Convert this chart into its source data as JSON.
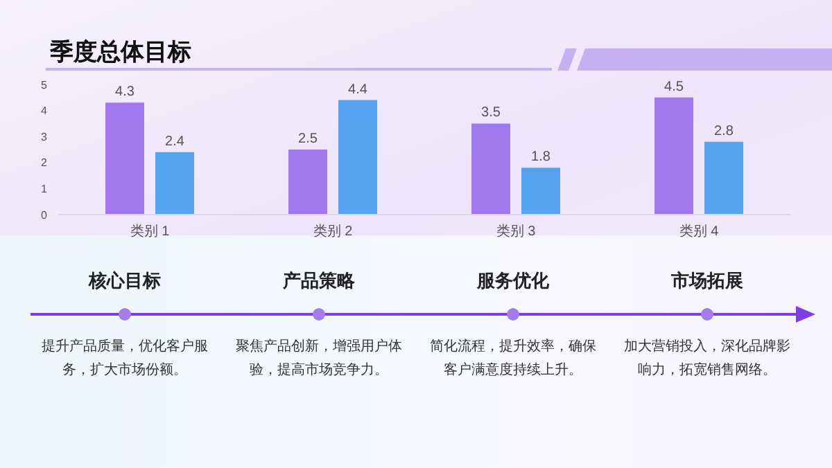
{
  "chart_data": {
    "type": "bar",
    "title": "季度总体目标",
    "categories": [
      "类别 1",
      "类别 2",
      "类别 3",
      "类别 4"
    ],
    "series": [
      {
        "color": "#a078ee",
        "values": [
          4.3,
          2.5,
          3.5,
          4.5
        ]
      },
      {
        "color": "#58a3f0",
        "values": [
          2.4,
          4.4,
          1.8,
          2.8
        ]
      }
    ],
    "ylim": [
      0,
      5
    ],
    "yticks": [
      0,
      1,
      2,
      3,
      4,
      5
    ],
    "grid": false,
    "legend": false,
    "data_labels": true,
    "annotations": [
      "核心目标",
      "产品策略",
      "服务优化",
      "市场拓展",
      "提升产品质量，优化客户服务，扩大市场份额。",
      "聚焦产品创新，增强用户体验，提高市场竞争力。",
      "简化流程，提升效率，确保客户满意度持续上升。",
      "加大营销投入，深化品牌影响力，拓宽销售网络。"
    ]
  }
}
